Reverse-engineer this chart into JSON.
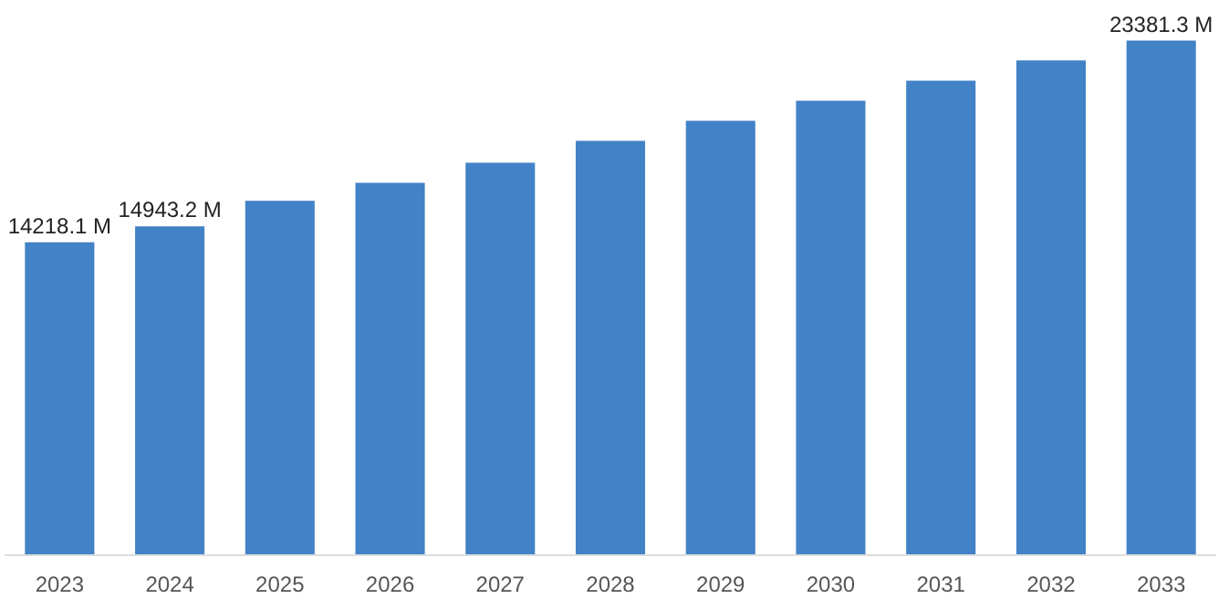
{
  "chart_data": {
    "type": "bar",
    "categories": [
      "2023",
      "2024",
      "2025",
      "2026",
      "2027",
      "2028",
      "2029",
      "2030",
      "2031",
      "2032",
      "2033"
    ],
    "values": [
      14218.1,
      14943.2,
      16100,
      16920,
      17830,
      18830,
      19740,
      20650,
      21560,
      22480,
      23381.3
    ],
    "color": "#4282c6",
    "value_labels": [
      "14218.1 M",
      "14943.2 M",
      null,
      null,
      null,
      null,
      null,
      null,
      null,
      null,
      "23381.3 M"
    ],
    "grid": false
  }
}
